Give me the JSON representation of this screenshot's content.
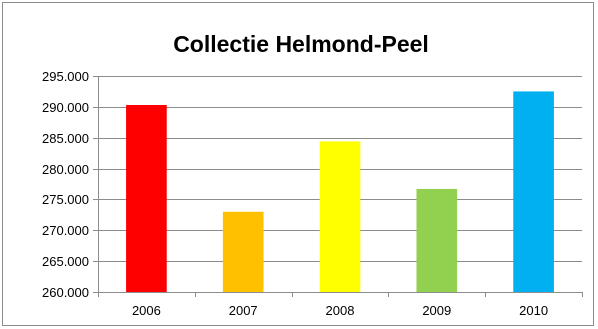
{
  "chart_data": {
    "type": "bar",
    "title": "Collectie Helmond-Peel",
    "xlabel": "",
    "ylabel": "",
    "categories": [
      "2006",
      "2007",
      "2008",
      "2009",
      "2010"
    ],
    "values": [
      290300,
      273000,
      284400,
      276700,
      292500
    ],
    "colors": [
      "#ff0000",
      "#ffc000",
      "#ffff00",
      "#92d050",
      "#00b0f0"
    ],
    "ylim": [
      260000,
      295000
    ],
    "yticks": [
      260000,
      265000,
      270000,
      275000,
      280000,
      285000,
      290000,
      295000
    ],
    "ytick_labels": [
      "260.000",
      "265.000",
      "270.000",
      "275.000",
      "280.000",
      "285.000",
      "290.000",
      "295.000"
    ],
    "grid": true,
    "legend": "none"
  }
}
